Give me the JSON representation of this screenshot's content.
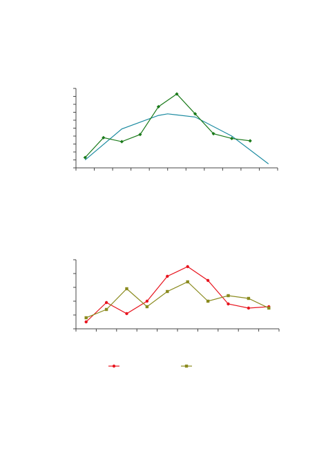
{
  "colors": {
    "axis": "#444444",
    "top_series": "#1a7a1a",
    "top_fit": "#1a8aa0",
    "bottom_series_a": "#e8141e",
    "bottom_series_b": "#8a8a1e"
  },
  "chart_data": [
    {
      "type": "line",
      "title": "",
      "xlabel": "",
      "ylabel": "",
      "grid": false,
      "xlim": [
        0,
        11
      ],
      "ylim": [
        0,
        10
      ],
      "series": [
        {
          "values": [
            [
              0.5,
              1.3
            ],
            [
              1.5,
              3.8
            ],
            [
              2.5,
              3.3
            ],
            [
              3.5,
              4.2
            ],
            [
              4.5,
              7.7
            ],
            [
              5.5,
              9.3
            ],
            [
              6.5,
              6.8
            ],
            [
              7.5,
              4.3
            ],
            [
              8.5,
              3.7
            ],
            [
              9.5,
              3.4
            ]
          ]
        }
      ],
      "trend": {
        "kind": "quadratic",
        "values": [
          [
            0.5,
            1.0
          ],
          [
            2.5,
            4.9
          ],
          [
            4.5,
            6.6
          ],
          [
            5.0,
            6.8
          ],
          [
            6.5,
            6.4
          ],
          [
            8.5,
            4.0
          ],
          [
            10.5,
            0.5
          ]
        ]
      }
    },
    {
      "type": "line",
      "title": "",
      "xlabel": "",
      "ylabel": "",
      "grid": false,
      "xlim": [
        0,
        10
      ],
      "ylim": [
        0,
        5
      ],
      "series": [
        {
          "x": [
            0.5,
            1.5,
            2.5,
            3.5,
            4.5,
            5.5,
            6.5,
            7.5,
            8.5,
            9.5
          ],
          "values": [
            0.5,
            1.9,
            1.1,
            2.0,
            3.8,
            4.5,
            3.5,
            1.8,
            1.5,
            1.6
          ]
        },
        {
          "x": [
            0.5,
            1.5,
            2.5,
            3.5,
            4.5,
            5.5,
            6.5,
            7.5,
            8.5,
            9.5
          ],
          "values": [
            0.8,
            1.4,
            2.9,
            1.6,
            2.7,
            3.4,
            2.0,
            2.4,
            2.2,
            1.5
          ]
        }
      ],
      "legend": {
        "placement": "bottom",
        "entries": [
          "",
          ""
        ]
      }
    }
  ]
}
